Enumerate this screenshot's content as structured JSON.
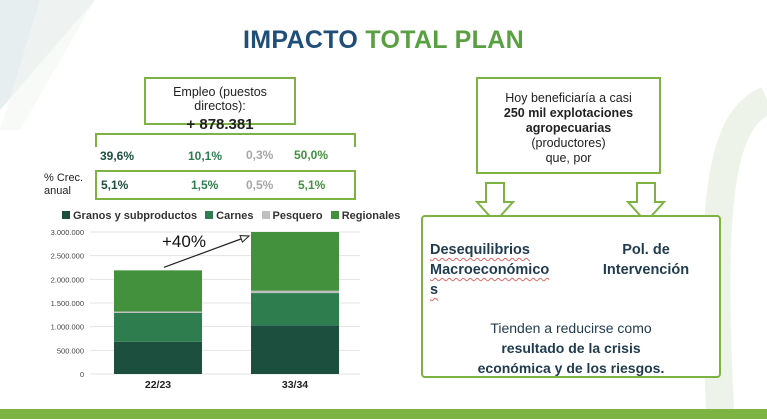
{
  "title": {
    "part1": "IMPACTO",
    "part2": "TOTAL PLAN"
  },
  "employment": {
    "label": "Empleo (puestos directos):",
    "value": "+ 878.381"
  },
  "shares": {
    "granos": "39,6%",
    "carnes": "10,1%",
    "pesquero": "0,3%",
    "regionales": "50,0%"
  },
  "growth": {
    "label_line1": "% Crec.",
    "label_line2": "anual",
    "granos": "5,1%",
    "carnes": "1,5%",
    "pesquero": "0,5%",
    "regionales": "5,1%"
  },
  "beneficiaries": {
    "line1": "Hoy beneficiaría a casi",
    "bold1": "250 mil explotaciones",
    "bold2": "agropecuarias",
    "line2": "(productores)",
    "line3": "que, por"
  },
  "factors": {
    "des_line1": "Desequilibrios",
    "des_line2": "Macroeconómico",
    "des_line3": "s",
    "pol_line1": "Pol. de",
    "pol_line2": "Intervención"
  },
  "conclusion": {
    "line1": "Tienden a reducirse como",
    "bold1": "resultado de la crisis",
    "bold2": "económica y de los riesgos."
  },
  "growth_annotation": "+40%",
  "colors": {
    "granos": "#1d4f3f",
    "carnes": "#2e7d4f",
    "pesquero": "#bfbfbf",
    "regionales": "#43913d",
    "accent": "#7cb342"
  },
  "chart_data": {
    "type": "bar",
    "stacked": true,
    "categories": [
      "22/23",
      "33/34"
    ],
    "series": [
      {
        "name": "Granos y subproductos",
        "values": [
          680000,
          1030000
        ]
      },
      {
        "name": "Carnes",
        "values": [
          610000,
          680000
        ]
      },
      {
        "name": "Pesquero",
        "values": [
          30000,
          50000
        ]
      },
      {
        "name": "Regionales",
        "values": [
          870000,
          1240000
        ]
      }
    ],
    "ylim": [
      0,
      3000000
    ],
    "yticks": [
      "0",
      "500.000",
      "1.000.000",
      "1.500.000",
      "2.000.000",
      "2.500.000",
      "3.000.000"
    ],
    "legend": "top",
    "grid": true
  }
}
